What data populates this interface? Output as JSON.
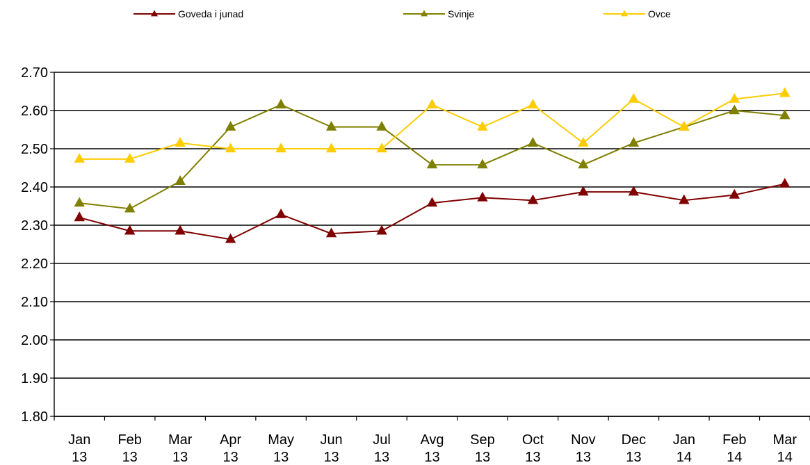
{
  "chart_data": {
    "type": "line",
    "title": "",
    "xlabel": "",
    "ylabel": "",
    "categories": [
      [
        "Jan",
        "13"
      ],
      [
        "Feb",
        "13"
      ],
      [
        "Mar",
        "13"
      ],
      [
        "Apr",
        "13"
      ],
      [
        "May",
        "13"
      ],
      [
        "Jun",
        "13"
      ],
      [
        "Jul",
        "13"
      ],
      [
        "Avg",
        "13"
      ],
      [
        "Sep",
        "13"
      ],
      [
        "Oct",
        "13"
      ],
      [
        "Nov",
        "13"
      ],
      [
        "Dec",
        "13"
      ],
      [
        "Jan",
        "14"
      ],
      [
        "Feb",
        "14"
      ],
      [
        "Mar",
        "14"
      ]
    ],
    "ylim": [
      1.8,
      2.7
    ],
    "yticks": [
      "1.80",
      "1.90",
      "2.00",
      "2.10",
      "2.20",
      "2.30",
      "2.40",
      "2.50",
      "2.60",
      "2.70"
    ],
    "grid": true,
    "legend_position": "top",
    "series": [
      {
        "name": "Goveda i junad",
        "color": "#800000",
        "marker": "triangle",
        "values": [
          2.32,
          2.285,
          2.285,
          2.263,
          2.328,
          2.278,
          2.285,
          2.358,
          2.372,
          2.365,
          2.387,
          2.387,
          2.365,
          2.379,
          2.408
        ]
      },
      {
        "name": "Svinje",
        "color": "#808000",
        "marker": "triangle",
        "values": [
          2.358,
          2.343,
          2.415,
          2.557,
          2.615,
          2.557,
          2.557,
          2.458,
          2.458,
          2.515,
          2.458,
          2.515,
          2.557,
          2.6,
          2.587
        ]
      },
      {
        "name": "Ovce",
        "color": "#FFCC00",
        "marker": "triangle",
        "values": [
          2.473,
          2.473,
          2.515,
          2.5,
          2.5,
          2.5,
          2.5,
          2.615,
          2.557,
          2.615,
          2.515,
          2.63,
          2.557,
          2.63,
          2.645
        ]
      }
    ]
  }
}
